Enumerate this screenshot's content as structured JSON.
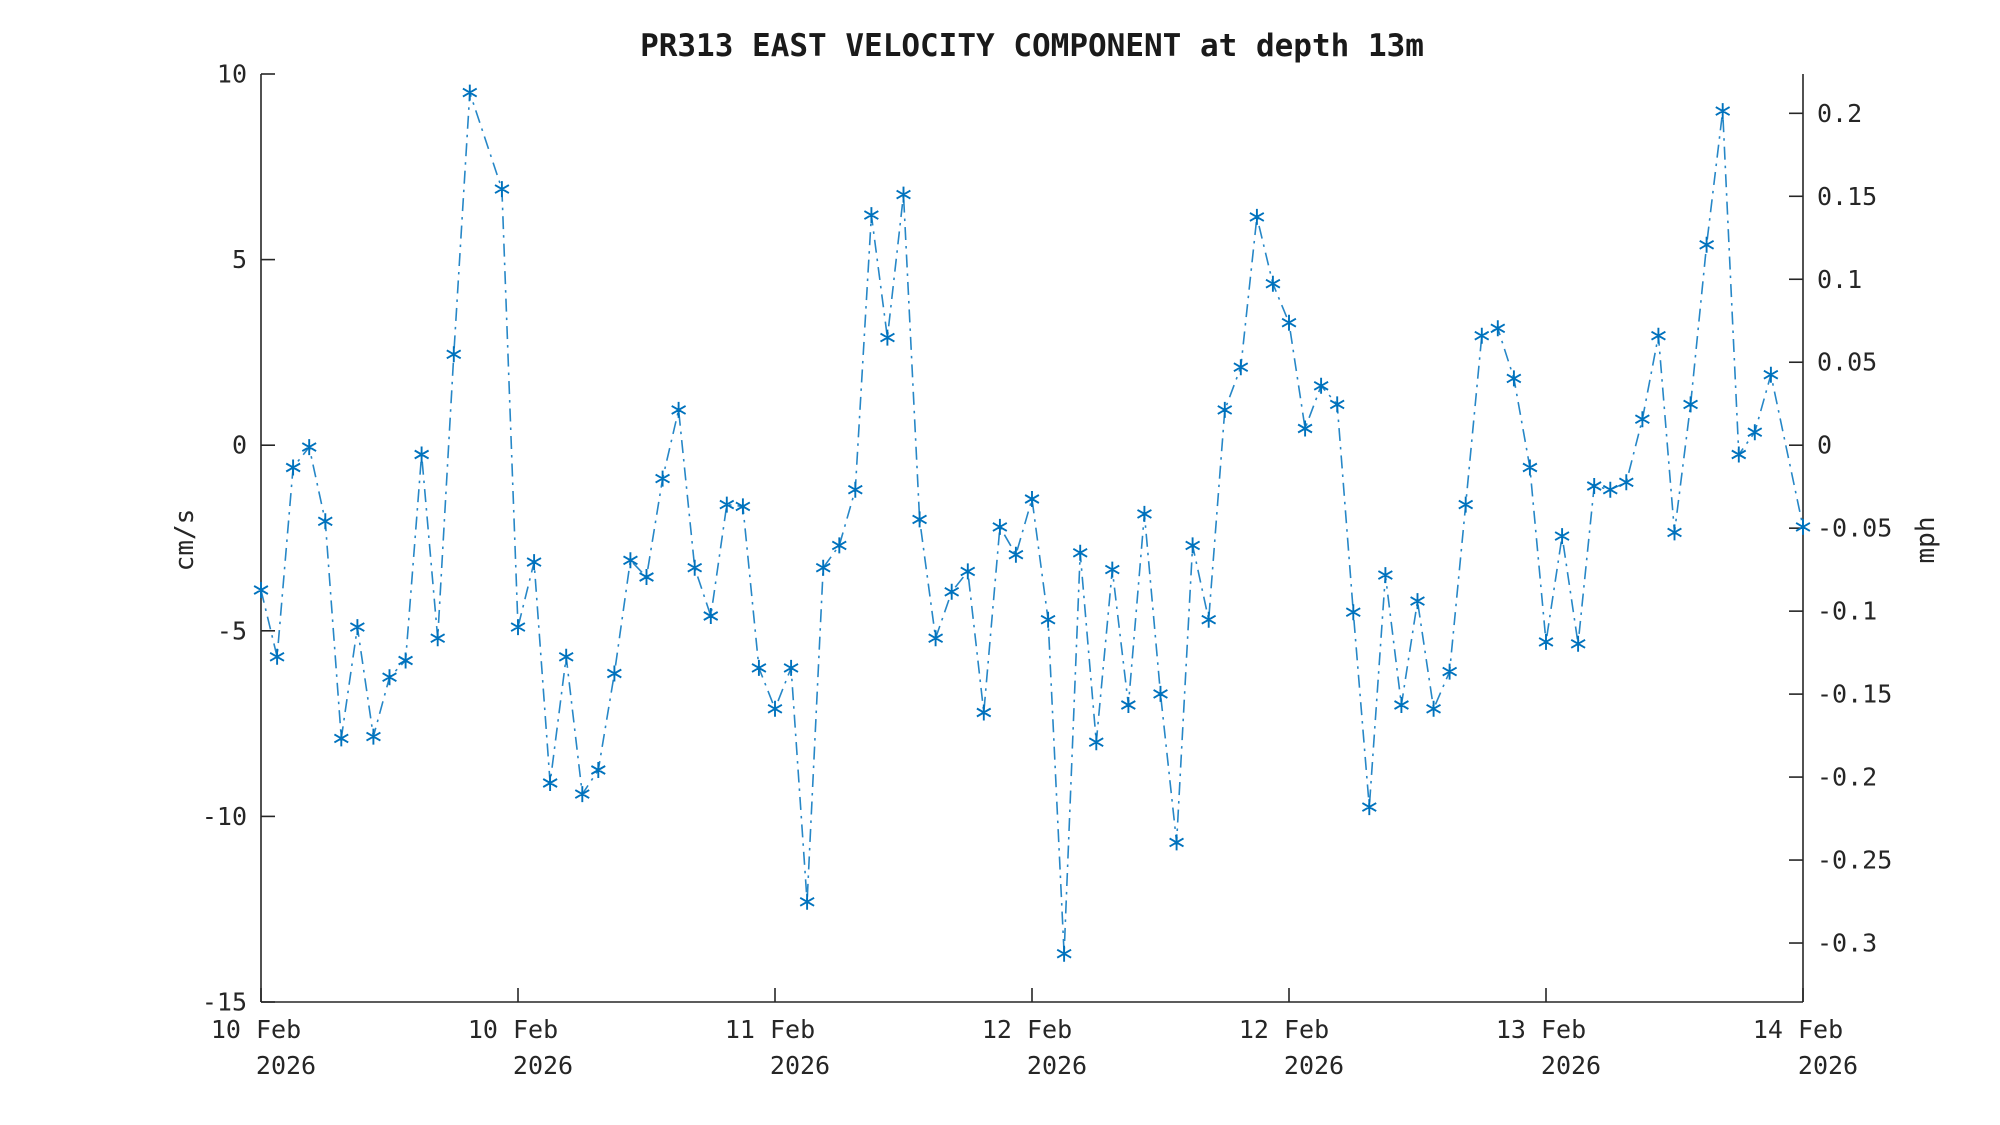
{
  "title": "PR313 EAST VELOCITY COMPONENT at depth 13m",
  "axes": {
    "left_label": "cm/s",
    "right_label": "mph"
  },
  "chart_data": {
    "type": "line",
    "title": "PR313 EAST VELOCITY COMPONENT at depth 13m",
    "xlabel": "",
    "ylabel_left": "cm/s",
    "ylabel_right": "mph",
    "x_unit": "hours since 10 Feb 2026 00:00",
    "x_range_hours": [
      0,
      96
    ],
    "ylim_left": [
      -15,
      10
    ],
    "yticks_left": [
      10,
      5,
      0,
      -5,
      -10,
      -15
    ],
    "ytick_labels_left": [
      "10",
      "5",
      "0",
      "-5",
      "-10",
      "-15"
    ],
    "yticks_right_mph": [
      0.2,
      0.15,
      0.1,
      0.05,
      0,
      -0.05,
      -0.1,
      -0.15,
      -0.2,
      -0.25,
      -0.3
    ],
    "ytick_labels_right": [
      "0.2",
      "0.15",
      "0.1",
      "0.05",
      "0",
      "-0.05",
      "-0.1",
      "-0.15",
      "-0.2",
      "-0.25",
      "-0.3"
    ],
    "mph_per_cms": 0.0223694,
    "x_tick_hours": [
      0,
      16,
      32,
      48,
      64,
      80,
      96
    ],
    "x_tick_labels": [
      [
        "10 Feb",
        "2026"
      ],
      [
        "10 Feb",
        "2026"
      ],
      [
        "11 Feb",
        "2026"
      ],
      [
        "12 Feb",
        "2026"
      ],
      [
        "12 Feb",
        "2026"
      ],
      [
        "13 Feb",
        "2026"
      ],
      [
        "14 Feb",
        "2026"
      ]
    ],
    "grid": false,
    "legend": "none",
    "line_style": "dash-dot",
    "marker": "asterisk",
    "color": "#0072BD",
    "axis_color": "#262626",
    "series": [
      {
        "name": "east velocity (cm/s)",
        "hours": [
          0,
          1,
          2,
          3,
          4,
          5,
          6,
          7,
          8,
          9,
          10,
          11,
          12,
          13,
          15,
          16,
          17,
          18,
          19,
          20,
          21,
          22,
          23,
          24,
          25,
          26,
          27,
          28,
          29,
          30,
          31,
          32,
          33,
          34,
          35,
          36,
          37,
          38,
          39,
          40,
          41,
          42,
          43,
          44,
          45,
          46,
          47,
          48,
          49,
          50,
          51,
          52,
          53,
          54,
          55,
          56,
          57,
          58,
          59,
          60,
          61,
          62,
          63,
          64,
          65,
          66,
          67,
          68,
          69,
          70,
          71,
          72,
          73,
          74,
          75,
          76,
          77,
          78,
          79,
          80,
          81,
          82,
          83,
          84,
          85,
          86,
          87,
          88,
          89,
          90,
          91,
          92,
          93,
          94,
          96
        ],
        "values": [
          -3.9,
          -5.7,
          -0.6,
          -0.05,
          -2.05,
          -7.9,
          -4.9,
          -7.85,
          -6.25,
          -5.8,
          -0.25,
          -5.2,
          2.45,
          9.5,
          6.9,
          -4.9,
          -3.15,
          -9.1,
          -5.7,
          -9.4,
          -8.75,
          -6.15,
          -3.1,
          -3.55,
          -0.9,
          0.95,
          -3.3,
          -4.6,
          -1.6,
          -1.65,
          -6.0,
          -7.1,
          -6.0,
          -12.3,
          -3.3,
          -2.7,
          -1.2,
          6.2,
          2.9,
          6.75,
          -2.0,
          -5.2,
          -3.95,
          -3.4,
          -7.2,
          -2.2,
          -2.95,
          -1.45,
          -4.7,
          -13.7,
          -2.9,
          -8.0,
          -3.35,
          -7.0,
          -1.85,
          -6.7,
          -10.7,
          -2.7,
          -4.7,
          0.95,
          2.1,
          6.15,
          4.35,
          3.3,
          0.45,
          1.6,
          1.1,
          -4.5,
          -9.75,
          -3.5,
          -7.0,
          -4.2,
          -7.1,
          -6.1,
          -1.6,
          2.95,
          3.15,
          1.8,
          -0.6,
          -5.3,
          -2.45,
          -5.35,
          -1.1,
          -1.2,
          -1.0,
          0.7,
          2.95,
          -2.35,
          1.1,
          5.4,
          9.0,
          -0.25,
          0.35,
          1.9,
          -2.2
        ]
      }
    ]
  }
}
